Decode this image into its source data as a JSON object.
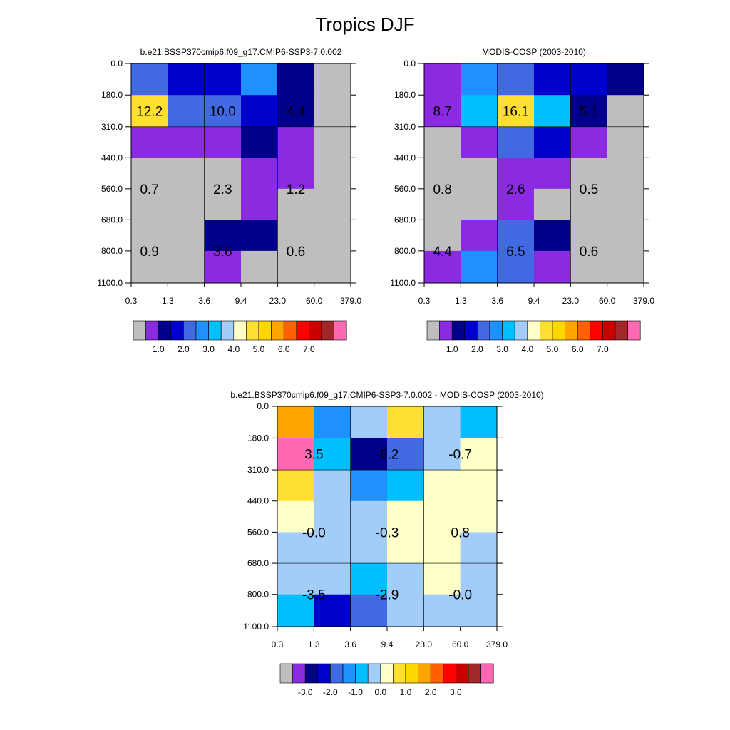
{
  "title": "Tropics DJF",
  "colors": {
    "seq_palette": [
      "#bebebe",
      "#8a2be2",
      "#00008b",
      "#0000cd",
      "#4169e1",
      "#1e90ff",
      "#00bfff",
      "#a2cdfa",
      "#ffffc8",
      "#ffe030",
      "#ffd700",
      "#ffa500",
      "#ff6000",
      "#ff0000",
      "#c80000",
      "#a02828",
      "#ff69b4"
    ],
    "diff_palette": [
      "#bebebe",
      "#8a2be2",
      "#00008b",
      "#0000cd",
      "#4169e1",
      "#1e90ff",
      "#00bfff",
      "#a2cdfa",
      "#ffffc8",
      "#ffe030",
      "#ffd700",
      "#ffa500",
      "#ff6000",
      "#ff0000",
      "#c80000",
      "#a02828",
      "#ff69b4"
    ]
  },
  "chart_data": [
    {
      "type": "heatmap",
      "title": "b.e21.BSSP370cmip6.f09_g17.CMIP6-SSP3-7.0.002",
      "x_ticks": [
        "0.3",
        "1.3",
        "3.6",
        "9.4",
        "23.0",
        "60.0",
        "379.0"
      ],
      "y_ticks": [
        "0.0",
        "180.0",
        "310.0",
        "440.0",
        "560.0",
        "680.0",
        "800.0",
        "1100.0"
      ],
      "y_inverted": true,
      "grid": true,
      "cells": [
        [
          4,
          3,
          3,
          5,
          2,
          0
        ],
        [
          9,
          4,
          4,
          3,
          2,
          0
        ],
        [
          1,
          1,
          1,
          2,
          1,
          0
        ],
        [
          0,
          0,
          0,
          1,
          1,
          0
        ],
        [
          0,
          0,
          0,
          1,
          0,
          0
        ],
        [
          0,
          0,
          2,
          2,
          0,
          0
        ],
        [
          0,
          0,
          1,
          0,
          0,
          0
        ]
      ],
      "annotations": [
        {
          "label": "12.2",
          "col": 0.5,
          "row": 1.5
        },
        {
          "label": "10.0",
          "col": 2.5,
          "row": 1.5
        },
        {
          "label": "4.4",
          "col": 4.5,
          "row": 1.5
        },
        {
          "label": "0.7",
          "col": 0.5,
          "row": 4.0
        },
        {
          "label": "2.3",
          "col": 2.5,
          "row": 4.0
        },
        {
          "label": "1.2",
          "col": 4.5,
          "row": 4.0
        },
        {
          "label": "0.9",
          "col": 0.5,
          "row": 6.0
        },
        {
          "label": "3.6",
          "col": 2.5,
          "row": 6.0
        },
        {
          "label": "0.6",
          "col": 4.5,
          "row": 6.0
        }
      ],
      "colorbar": {
        "palette": "seq_palette",
        "labels": [
          "1.0",
          "2.0",
          "3.0",
          "4.0",
          "5.0",
          "6.0",
          "7.0"
        ]
      }
    },
    {
      "type": "heatmap",
      "title": "MODIS-COSP (2003-2010)",
      "x_ticks": [
        "0.3",
        "1.3",
        "3.6",
        "9.4",
        "23.0",
        "60.0",
        "379.0"
      ],
      "y_ticks": [
        "0.0",
        "180.0",
        "310.0",
        "440.0",
        "560.0",
        "680.0",
        "800.0",
        "1100.0"
      ],
      "y_inverted": true,
      "grid": true,
      "cells": [
        [
          1,
          5,
          4,
          3,
          3,
          2
        ],
        [
          1,
          6,
          9,
          6,
          2,
          0
        ],
        [
          0,
          1,
          4,
          3,
          1,
          0
        ],
        [
          0,
          0,
          1,
          1,
          0,
          0
        ],
        [
          0,
          0,
          1,
          0,
          0,
          0
        ],
        [
          0,
          1,
          4,
          2,
          0,
          0
        ],
        [
          1,
          5,
          4,
          1,
          0,
          0
        ]
      ],
      "annotations": [
        {
          "label": "8.7",
          "col": 0.5,
          "row": 1.5
        },
        {
          "label": "16.1",
          "col": 2.5,
          "row": 1.5
        },
        {
          "label": "5.1",
          "col": 4.5,
          "row": 1.5
        },
        {
          "label": "0.8",
          "col": 0.5,
          "row": 4.0
        },
        {
          "label": "2.6",
          "col": 2.5,
          "row": 4.0
        },
        {
          "label": "0.5",
          "col": 4.5,
          "row": 4.0
        },
        {
          "label": "4.4",
          "col": 0.5,
          "row": 6.0
        },
        {
          "label": "6.5",
          "col": 2.5,
          "row": 6.0
        },
        {
          "label": "0.6",
          "col": 4.5,
          "row": 6.0
        }
      ],
      "colorbar": {
        "palette": "seq_palette",
        "labels": [
          "1.0",
          "2.0",
          "3.0",
          "4.0",
          "5.0",
          "6.0",
          "7.0"
        ]
      }
    },
    {
      "type": "heatmap",
      "title": "b.e21.BSSP370cmip6.f09_g17.CMIP6-SSP3-7.0.002 - MODIS-COSP (2003-2010)",
      "x_ticks": [
        "0.3",
        "1.3",
        "3.6",
        "9.4",
        "23.0",
        "60.0",
        "379.0"
      ],
      "y_ticks": [
        "0.0",
        "180.0",
        "310.0",
        "440.0",
        "560.0",
        "680.0",
        "800.0",
        "1100.0"
      ],
      "y_inverted": true,
      "grid": true,
      "cells": [
        [
          11,
          5,
          7,
          9,
          7,
          6
        ],
        [
          16,
          6,
          2,
          4,
          7,
          8
        ],
        [
          9,
          7,
          5,
          6,
          8,
          8
        ],
        [
          8,
          7,
          7,
          8,
          8,
          8
        ],
        [
          7,
          7,
          7,
          8,
          8,
          7
        ],
        [
          7,
          7,
          6,
          7,
          8,
          7
        ],
        [
          6,
          3,
          4,
          7,
          7,
          7
        ]
      ],
      "annotations": [
        {
          "label": "3.5",
          "col": 1.0,
          "row": 1.5
        },
        {
          "label": "-6.2",
          "col": 3.0,
          "row": 1.5
        },
        {
          "label": "-0.7",
          "col": 5.0,
          "row": 1.5
        },
        {
          "label": "-0.0",
          "col": 1.0,
          "row": 4.0
        },
        {
          "label": "-0.3",
          "col": 3.0,
          "row": 4.0
        },
        {
          "label": "0.8",
          "col": 5.0,
          "row": 4.0
        },
        {
          "label": "-3.5",
          "col": 1.0,
          "row": 6.0
        },
        {
          "label": "-2.9",
          "col": 3.0,
          "row": 6.0
        },
        {
          "label": "-0.0",
          "col": 5.0,
          "row": 6.0
        }
      ],
      "colorbar": {
        "palette": "diff_palette",
        "labels": [
          "-3.0",
          "-2.0",
          "-1.0",
          "0.0",
          "1.0",
          "2.0",
          "3.0"
        ]
      }
    }
  ]
}
